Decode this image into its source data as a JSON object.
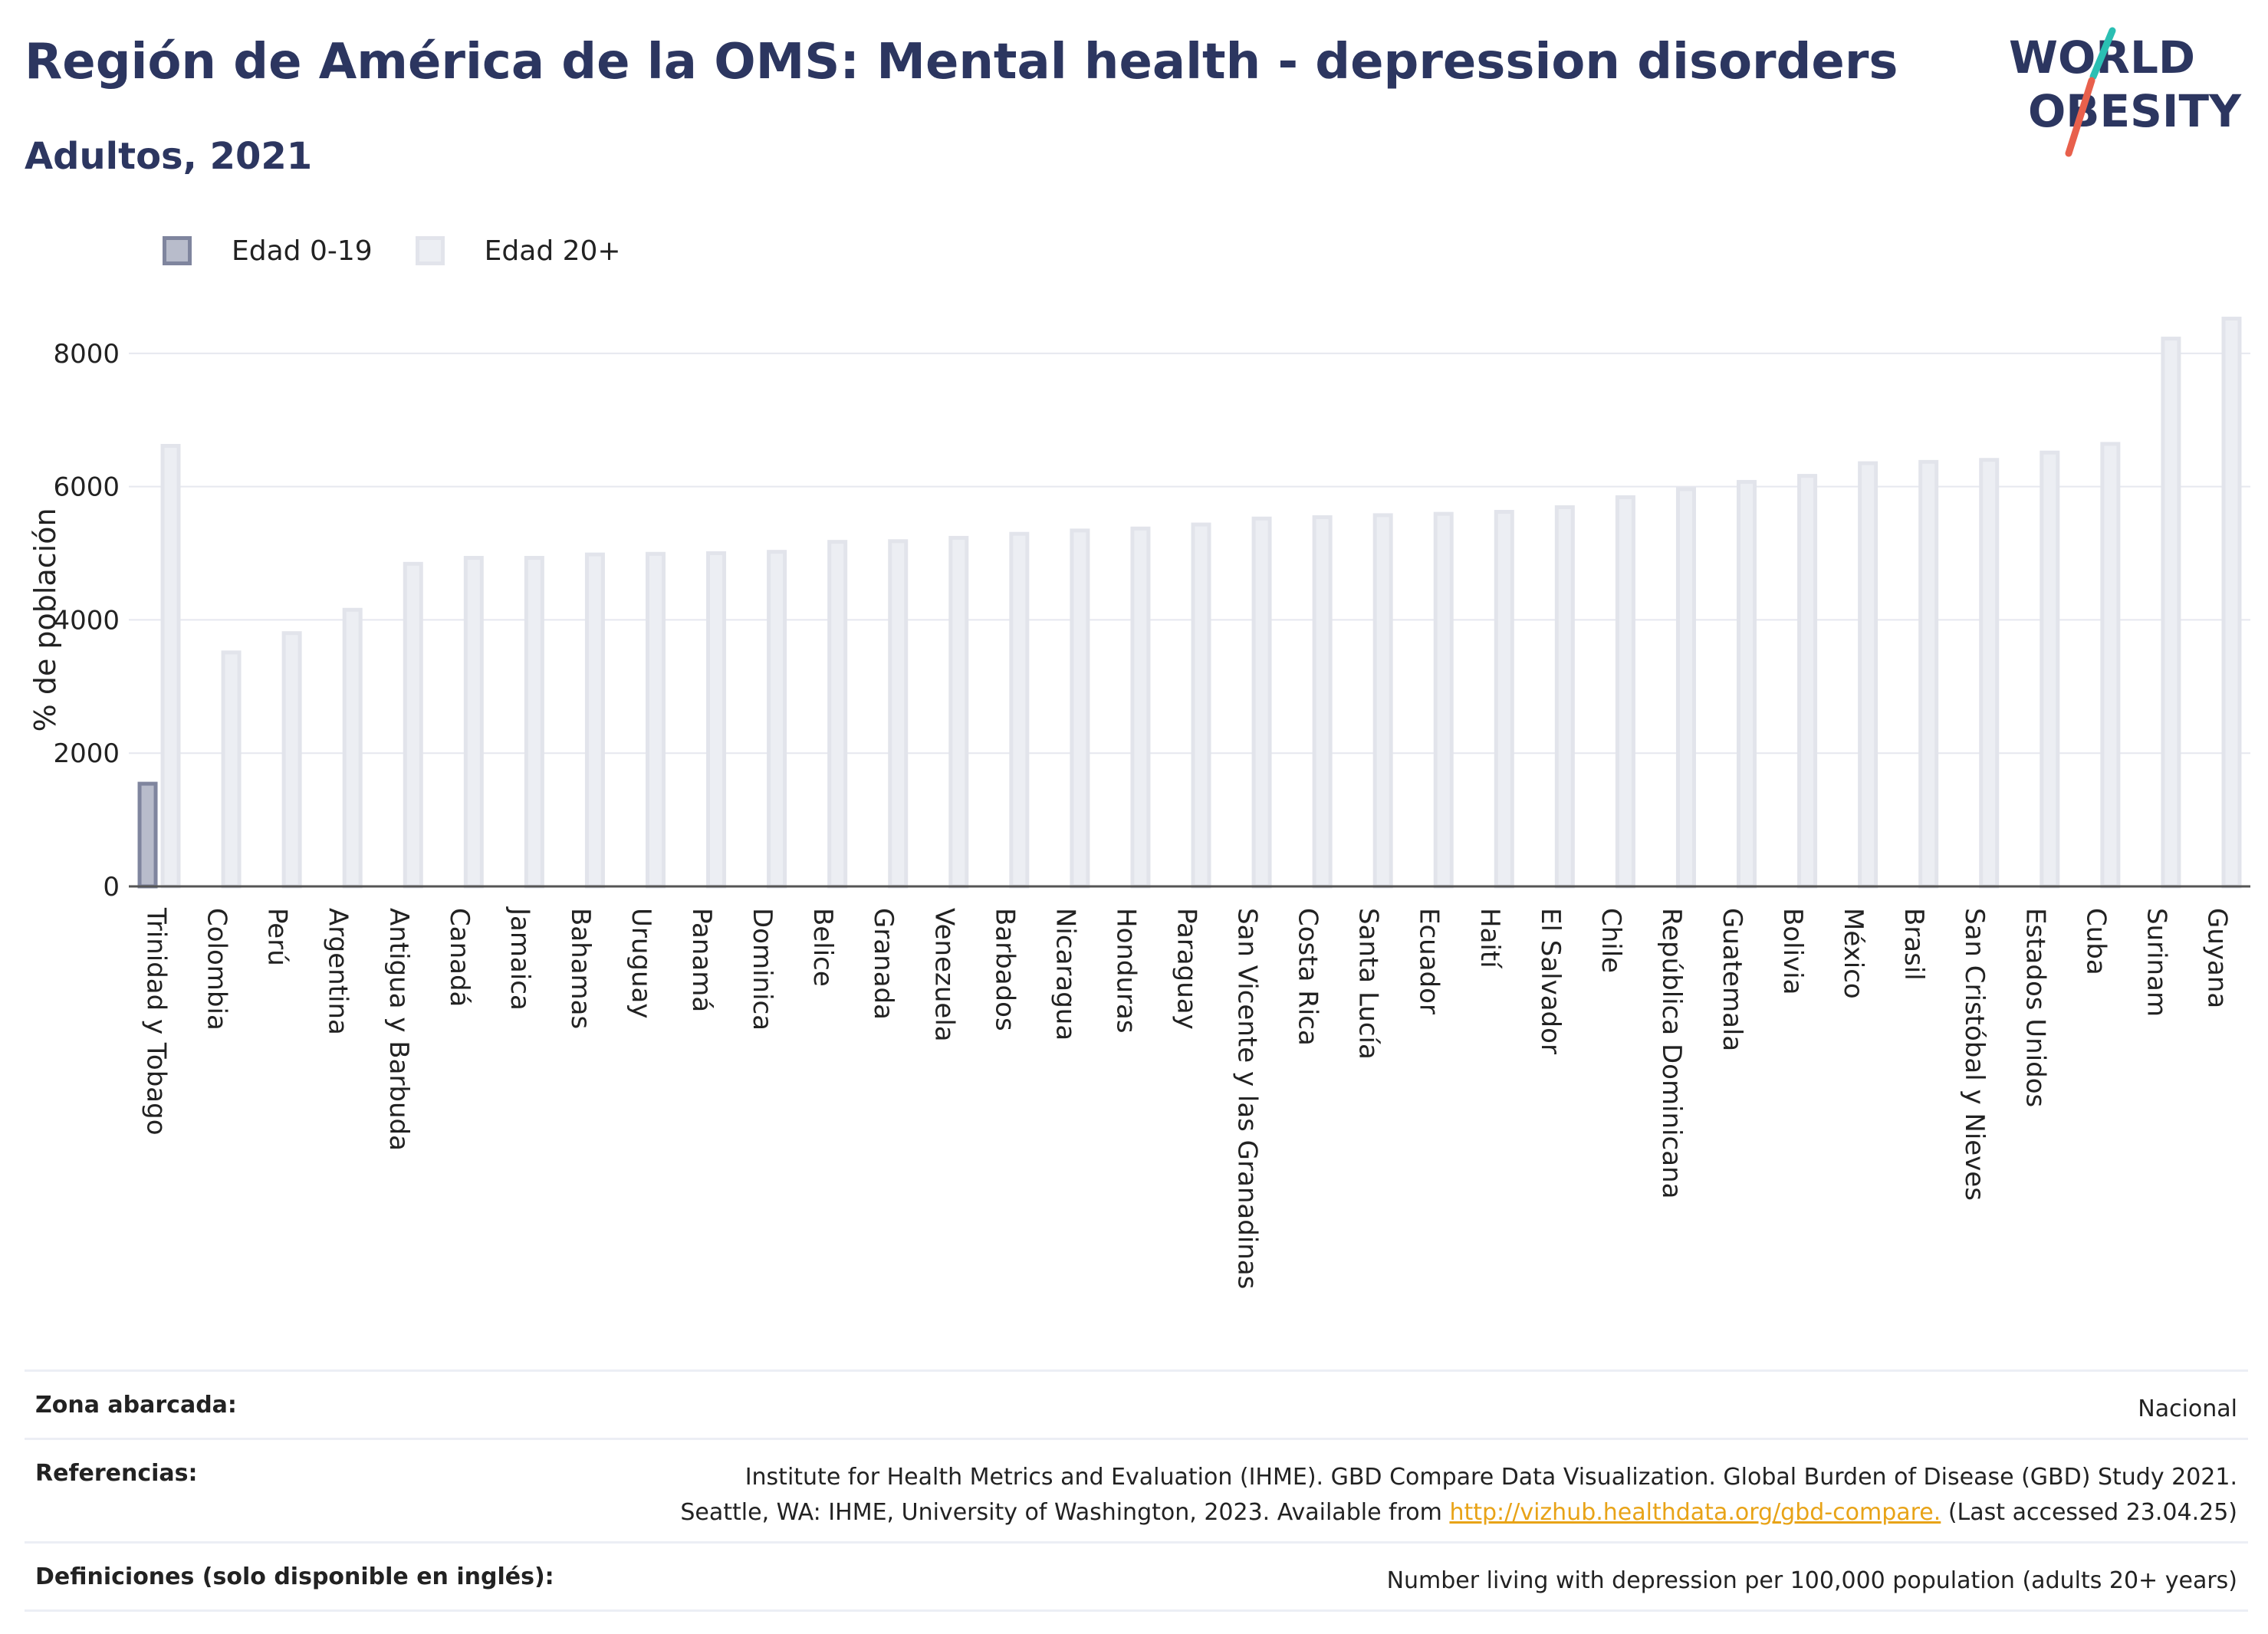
{
  "header": {
    "title": "Región de América de la OMS: Mental health - depression disorders",
    "subtitle": "Adultos, 2021"
  },
  "logo": {
    "line1": "WORLD",
    "line2": "OBESITY",
    "accent_teal": "#2bbfb3",
    "accent_coral": "#e8604c"
  },
  "legend": {
    "items": [
      {
        "label": "Edad 0-19",
        "color": "#7f859e"
      },
      {
        "label": "Edad 20+",
        "color": "#e2e4eb"
      }
    ]
  },
  "chart_data": {
    "type": "bar",
    "title": "Región de América de la OMS: Mental health - depression disorders",
    "subtitle": "Adultos, 2021",
    "xlabel": "",
    "ylabel": "% de población",
    "ylim": [
      0,
      8700
    ],
    "yticks": [
      0,
      2000,
      4000,
      6000,
      8000
    ],
    "grid": true,
    "legend_position": "top-left",
    "categories": [
      "Trinidad y Tobago",
      "Colombia",
      "Perú",
      "Argentina",
      "Antigua y Barbuda",
      "Canadá",
      "Jamaica",
      "Bahamas",
      "Uruguay",
      "Panamá",
      "Dominica",
      "Belice",
      "Granada",
      "Venezuela",
      "Barbados",
      "Nicaragua",
      "Honduras",
      "Paraguay",
      "San Vicente y las Granadinas",
      "Costa Rica",
      "Santa Lucía",
      "Ecuador",
      "Haití",
      "El Salvador",
      "Chile",
      "República Dominicana",
      "Guatemala",
      "Bolivia",
      "México",
      "Brasil",
      "San Cristóbal y Nieves",
      "Estados Unidos",
      "Cuba",
      "Surinam",
      "Guyana"
    ],
    "series": [
      {
        "name": "Edad 0-19",
        "color": "#7f859e",
        "fill": "#b8bccb",
        "values": [
          1570,
          null,
          null,
          null,
          null,
          null,
          null,
          null,
          null,
          null,
          null,
          null,
          null,
          null,
          null,
          null,
          null,
          null,
          null,
          null,
          null,
          null,
          null,
          null,
          null,
          null,
          null,
          null,
          null,
          null,
          null,
          null,
          null,
          null,
          null
        ]
      },
      {
        "name": "Edad 20+",
        "color": "#e2e4eb",
        "fill": "#eceef3",
        "values": [
          6640,
          3540,
          3830,
          4180,
          4870,
          4960,
          4960,
          5010,
          5020,
          5030,
          5050,
          5200,
          5210,
          5260,
          5320,
          5370,
          5400,
          5460,
          5550,
          5570,
          5600,
          5620,
          5650,
          5720,
          5870,
          5990,
          6100,
          6190,
          6380,
          6400,
          6430,
          6540,
          6670,
          8250,
          8550
        ]
      }
    ]
  },
  "footer": {
    "rows": [
      {
        "label": "Zona abarcada:",
        "lines": [
          "Nacional"
        ]
      },
      {
        "label": "Referencias:",
        "lines": [
          "Institute for Health Metrics and Evaluation (IHME). GBD Compare Data Visualization. Global Burden of Disease (GBD) Study 2021.",
          "Seattle, WA: IHME, University of Washington, 2023. Available from"
        ],
        "link": "http://vizhub.healthdata.org/gbd-compare.",
        "after_link": "(Last accessed 23.04.25)"
      },
      {
        "label": "Definiciones (solo disponible en inglés):",
        "lines": [
          "Number living with depression per 100,000 population (adults 20+ years)"
        ]
      }
    ]
  }
}
